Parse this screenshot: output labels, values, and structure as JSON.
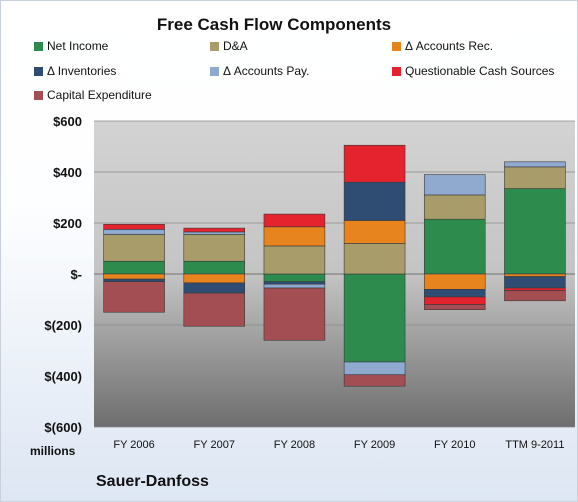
{
  "chart_data": {
    "type": "bar",
    "stacked": true,
    "title": "Free Cash Flow Components",
    "ylabel": "millions",
    "ylim": [
      -600,
      600
    ],
    "yticks": [
      600,
      400,
      200,
      0,
      -200,
      -400,
      -600
    ],
    "ytick_labels": [
      "$600",
      "$400",
      "$200",
      "$-",
      "$(200)",
      "$(400)",
      "$(600)"
    ],
    "categories": [
      "FY 2006",
      "FY 2007",
      "FY 2008",
      "FY 2009",
      "FY 2010",
      "TTM 9-2011"
    ],
    "legend_position": "top",
    "series": [
      {
        "name": "Net Income",
        "color": "#2e8b4e",
        "values": [
          50,
          50,
          -30,
          -345,
          215,
          335
        ]
      },
      {
        "name": "D&A",
        "color": "#a89c6a",
        "values": [
          105,
          105,
          110,
          120,
          95,
          85
        ]
      },
      {
        "name": "Δ Accounts Rec.",
        "color": "#e8841e",
        "values": [
          -20,
          -35,
          75,
          90,
          -60,
          -10
        ]
      },
      {
        "name": "Δ Inventories",
        "color": "#2f4d72",
        "values": [
          -10,
          -40,
          -10,
          150,
          -30,
          -45
        ]
      },
      {
        "name": "Δ Accounts Pay.",
        "color": "#8fa9cf",
        "values": [
          20,
          10,
          -15,
          -50,
          80,
          20
        ]
      },
      {
        "name": "Questionable Cash Sources",
        "color": "#e4232e",
        "values": [
          20,
          15,
          50,
          145,
          -30,
          -10
        ]
      },
      {
        "name": "Capital Expenditure",
        "color": "#a24e52",
        "values": [
          -120,
          -130,
          -205,
          -45,
          -20,
          -40
        ]
      }
    ]
  },
  "footer": {
    "company": "Sauer-Danfoss",
    "units": "millions"
  }
}
